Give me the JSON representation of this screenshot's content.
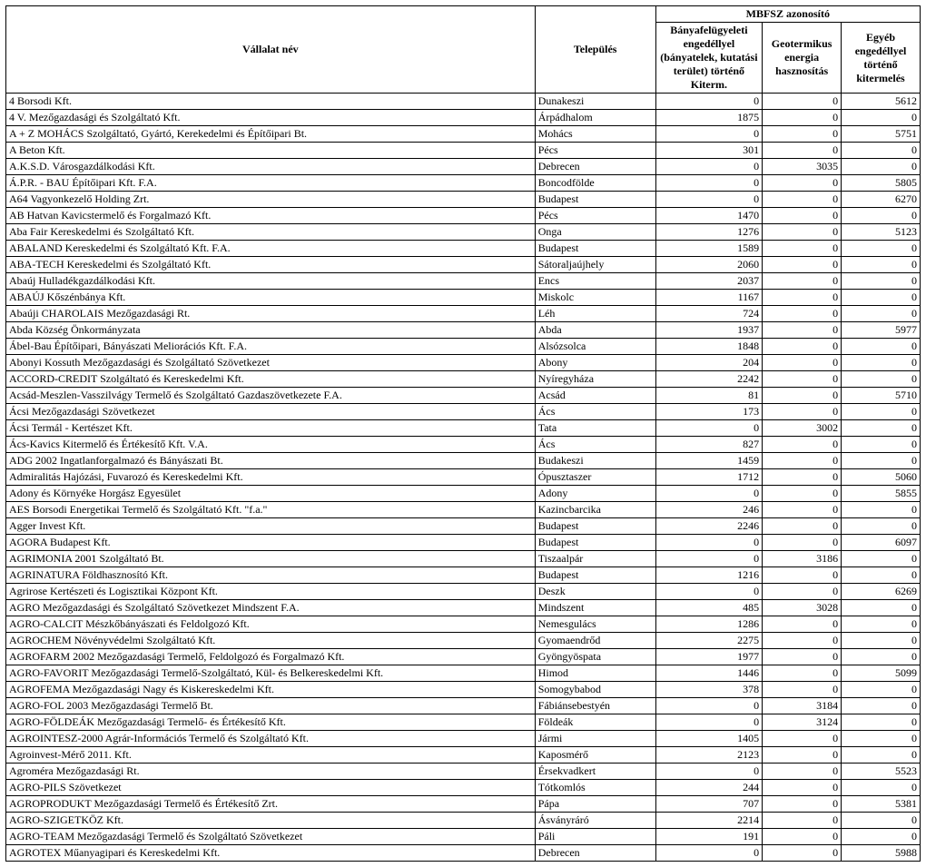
{
  "header": {
    "company": "Vállalat név",
    "town": "Település",
    "group": "MBFSZ azonosító",
    "col1": "Bányafelügyeleti engedéllyel (bányatelek, kutatási terület) történő Kiterm.",
    "col2": "Geotermikus energia hasznosítás",
    "col3": "Egyéb engedéllyel történő kitermelés"
  },
  "rows": [
    {
      "name": "4 Borsodi Kft.",
      "town": "Dunakeszi",
      "a": "0",
      "b": "0",
      "c": "5612"
    },
    {
      "name": "4 V. Mezőgazdasági és Szolgáltató Kft.",
      "town": "Árpádhalom",
      "a": "1875",
      "b": "0",
      "c": "0"
    },
    {
      "name": "A + Z MOHÁCS Szolgáltató, Gyártó, Kerekedelmi és Építőipari Bt.",
      "town": "Mohács",
      "a": "0",
      "b": "0",
      "c": "5751"
    },
    {
      "name": "A Beton Kft.",
      "town": "Pécs",
      "a": "301",
      "b": "0",
      "c": "0"
    },
    {
      "name": "A.K.S.D. Városgazdálkodási Kft.",
      "town": "Debrecen",
      "a": "0",
      "b": "3035",
      "c": "0"
    },
    {
      "name": "Á.P.R. - BAU Építőipari Kft. F.A.",
      "town": "Boncodfölde",
      "a": "0",
      "b": "0",
      "c": "5805"
    },
    {
      "name": "A64 Vagyonkezelő Holding Zrt.",
      "town": "Budapest",
      "a": "0",
      "b": "0",
      "c": "6270"
    },
    {
      "name": "AB Hatvan Kavicstermelő és Forgalmazó Kft.",
      "town": "Pécs",
      "a": "1470",
      "b": "0",
      "c": "0"
    },
    {
      "name": "Aba Fair Kereskedelmi és Szolgáltató Kft.",
      "town": "Onga",
      "a": "1276",
      "b": "0",
      "c": "5123"
    },
    {
      "name": "ABALAND Kereskedelmi és Szolgáltató Kft. F.A.",
      "town": "Budapest",
      "a": "1589",
      "b": "0",
      "c": "0"
    },
    {
      "name": "ABA-TECH Kereskedelmi és Szolgáltató Kft.",
      "town": "Sátoraljaújhely",
      "a": "2060",
      "b": "0",
      "c": "0"
    },
    {
      "name": "Abaúj Hulladékgazdálkodási Kft.",
      "town": "Encs",
      "a": "2037",
      "b": "0",
      "c": "0"
    },
    {
      "name": "ABAÚJ Kőszénbánya Kft.",
      "town": "Miskolc",
      "a": "1167",
      "b": "0",
      "c": "0"
    },
    {
      "name": "Abaúji CHAROLAIS Mezőgazdasági Rt.",
      "town": "Léh",
      "a": "724",
      "b": "0",
      "c": "0"
    },
    {
      "name": "Abda Község Önkormányzata",
      "town": "Abda",
      "a": "1937",
      "b": "0",
      "c": "5977"
    },
    {
      "name": "Ábel-Bau Építőipari, Bányászati Meliorációs Kft. F.A.",
      "town": "Alsózsolca",
      "a": "1848",
      "b": "0",
      "c": "0"
    },
    {
      "name": "Abonyi Kossuth Mezőgazdasági és Szolgáltató Szövetkezet",
      "town": "Abony",
      "a": "204",
      "b": "0",
      "c": "0"
    },
    {
      "name": "ACCORD-CREDIT Szolgáltató és Kereskedelmi Kft.",
      "town": "Nyíregyháza",
      "a": "2242",
      "b": "0",
      "c": "0"
    },
    {
      "name": "Acsád-Meszlen-Vasszilvágy Termelő és Szolgáltató Gazdaszövetkezete F.A.",
      "town": "Acsád",
      "a": "81",
      "b": "0",
      "c": "5710"
    },
    {
      "name": "Ácsi Mezőgazdasági Szövetkezet",
      "town": "Ács",
      "a": "173",
      "b": "0",
      "c": "0"
    },
    {
      "name": "Ácsi Termál - Kertészet Kft.",
      "town": "Tata",
      "a": "0",
      "b": "3002",
      "c": "0"
    },
    {
      "name": "Ács-Kavics Kitermelő és Értékesítő Kft. V.A.",
      "town": "Ács",
      "a": "827",
      "b": "0",
      "c": "0"
    },
    {
      "name": "ADG 2002 Ingatlanforgalmazó és Bányászati Bt.",
      "town": "Budakeszi",
      "a": "1459",
      "b": "0",
      "c": "0"
    },
    {
      "name": "Admiralitás Hajózási, Fuvarozó és Kereskedelmi Kft.",
      "town": "Ópusztaszer",
      "a": "1712",
      "b": "0",
      "c": "5060"
    },
    {
      "name": "Adony és Környéke Horgász Egyesület",
      "town": "Adony",
      "a": "0",
      "b": "0",
      "c": "5855"
    },
    {
      "name": "AES Borsodi Energetikai Termelő és Szolgáltató Kft. \"f.a.\"",
      "town": "Kazincbarcika",
      "a": "246",
      "b": "0",
      "c": "0"
    },
    {
      "name": "Agger Invest Kft.",
      "town": "Budapest",
      "a": "2246",
      "b": "0",
      "c": "0"
    },
    {
      "name": "AGORA Budapest Kft.",
      "town": "Budapest",
      "a": "0",
      "b": "0",
      "c": "6097"
    },
    {
      "name": "AGRIMONIA 2001 Szolgáltató Bt.",
      "town": "Tiszaalpár",
      "a": "0",
      "b": "3186",
      "c": "0"
    },
    {
      "name": "AGRINATURA Földhasznosító Kft.",
      "town": "Budapest",
      "a": "1216",
      "b": "0",
      "c": "0"
    },
    {
      "name": "Agrirose Kertészeti és Logisztikai Központ Kft.",
      "town": "Deszk",
      "a": "0",
      "b": "0",
      "c": "6269"
    },
    {
      "name": "AGRO Mezőgazdasági és Szolgáltató Szövetkezet Mindszent F.A.",
      "town": "Mindszent",
      "a": "485",
      "b": "3028",
      "c": "0"
    },
    {
      "name": "AGRO-CALCIT Mészkőbányászati és Feldolgozó Kft.",
      "town": "Nemesgulács",
      "a": "1286",
      "b": "0",
      "c": "0"
    },
    {
      "name": "AGROCHEM Növényvédelmi Szolgáltató Kft.",
      "town": "Gyomaendrőd",
      "a": "2275",
      "b": "0",
      "c": "0"
    },
    {
      "name": "AGROFARM 2002 Mezőgazdasági Termelő, Feldolgozó és Forgalmazó Kft.",
      "town": "Gyöngyöspata",
      "a": "1977",
      "b": "0",
      "c": "0"
    },
    {
      "name": "AGRO-FAVORIT Mezőgazdasági Termelő-Szolgáltató, Kül- és Belkereskedelmi Kft.",
      "town": "Himod",
      "a": "1446",
      "b": "0",
      "c": "5099"
    },
    {
      "name": "AGROFEMA Mezőgazdasági Nagy és Kiskereskedelmi Kft.",
      "town": "Somogybabod",
      "a": "378",
      "b": "0",
      "c": "0"
    },
    {
      "name": "AGRO-FOL 2003 Mezőgazdasági Termelő Bt.",
      "town": "Fábiánsebestyén",
      "a": "0",
      "b": "3184",
      "c": "0"
    },
    {
      "name": "AGRO-FÖLDEÁK Mezőgazdasági Termelő- és Értékesítő Kft.",
      "town": "Földeák",
      "a": "0",
      "b": "3124",
      "c": "0"
    },
    {
      "name": "AGROINTESZ-2000 Agrár-Információs Termelő és Szolgáltató Kft.",
      "town": "Jármi",
      "a": "1405",
      "b": "0",
      "c": "0"
    },
    {
      "name": "Agroinvest-Mérő 2011. Kft.",
      "town": "Kaposmérő",
      "a": "2123",
      "b": "0",
      "c": "0"
    },
    {
      "name": "Agroméra Mezőgazdasági Rt.",
      "town": "Érsekvadkert",
      "a": "0",
      "b": "0",
      "c": "5523"
    },
    {
      "name": "AGRO-PILS Szövetkezet",
      "town": "Tótkomlós",
      "a": "244",
      "b": "0",
      "c": "0"
    },
    {
      "name": "AGROPRODUKT Mezőgazdasági Termelő és Értékesítő Zrt.",
      "town": "Pápa",
      "a": "707",
      "b": "0",
      "c": "5381"
    },
    {
      "name": "AGRO-SZIGETKÖZ Kft.",
      "town": "Ásványráró",
      "a": "2214",
      "b": "0",
      "c": "0"
    },
    {
      "name": "AGRO-TEAM Mezőgazdasági Termelő és Szolgáltató Szövetkezet",
      "town": "Páli",
      "a": "191",
      "b": "0",
      "c": "0"
    },
    {
      "name": "AGROTEX Műanyagipari és Kereskedelmi Kft.",
      "town": "Debrecen",
      "a": "0",
      "b": "0",
      "c": "5988"
    }
  ]
}
